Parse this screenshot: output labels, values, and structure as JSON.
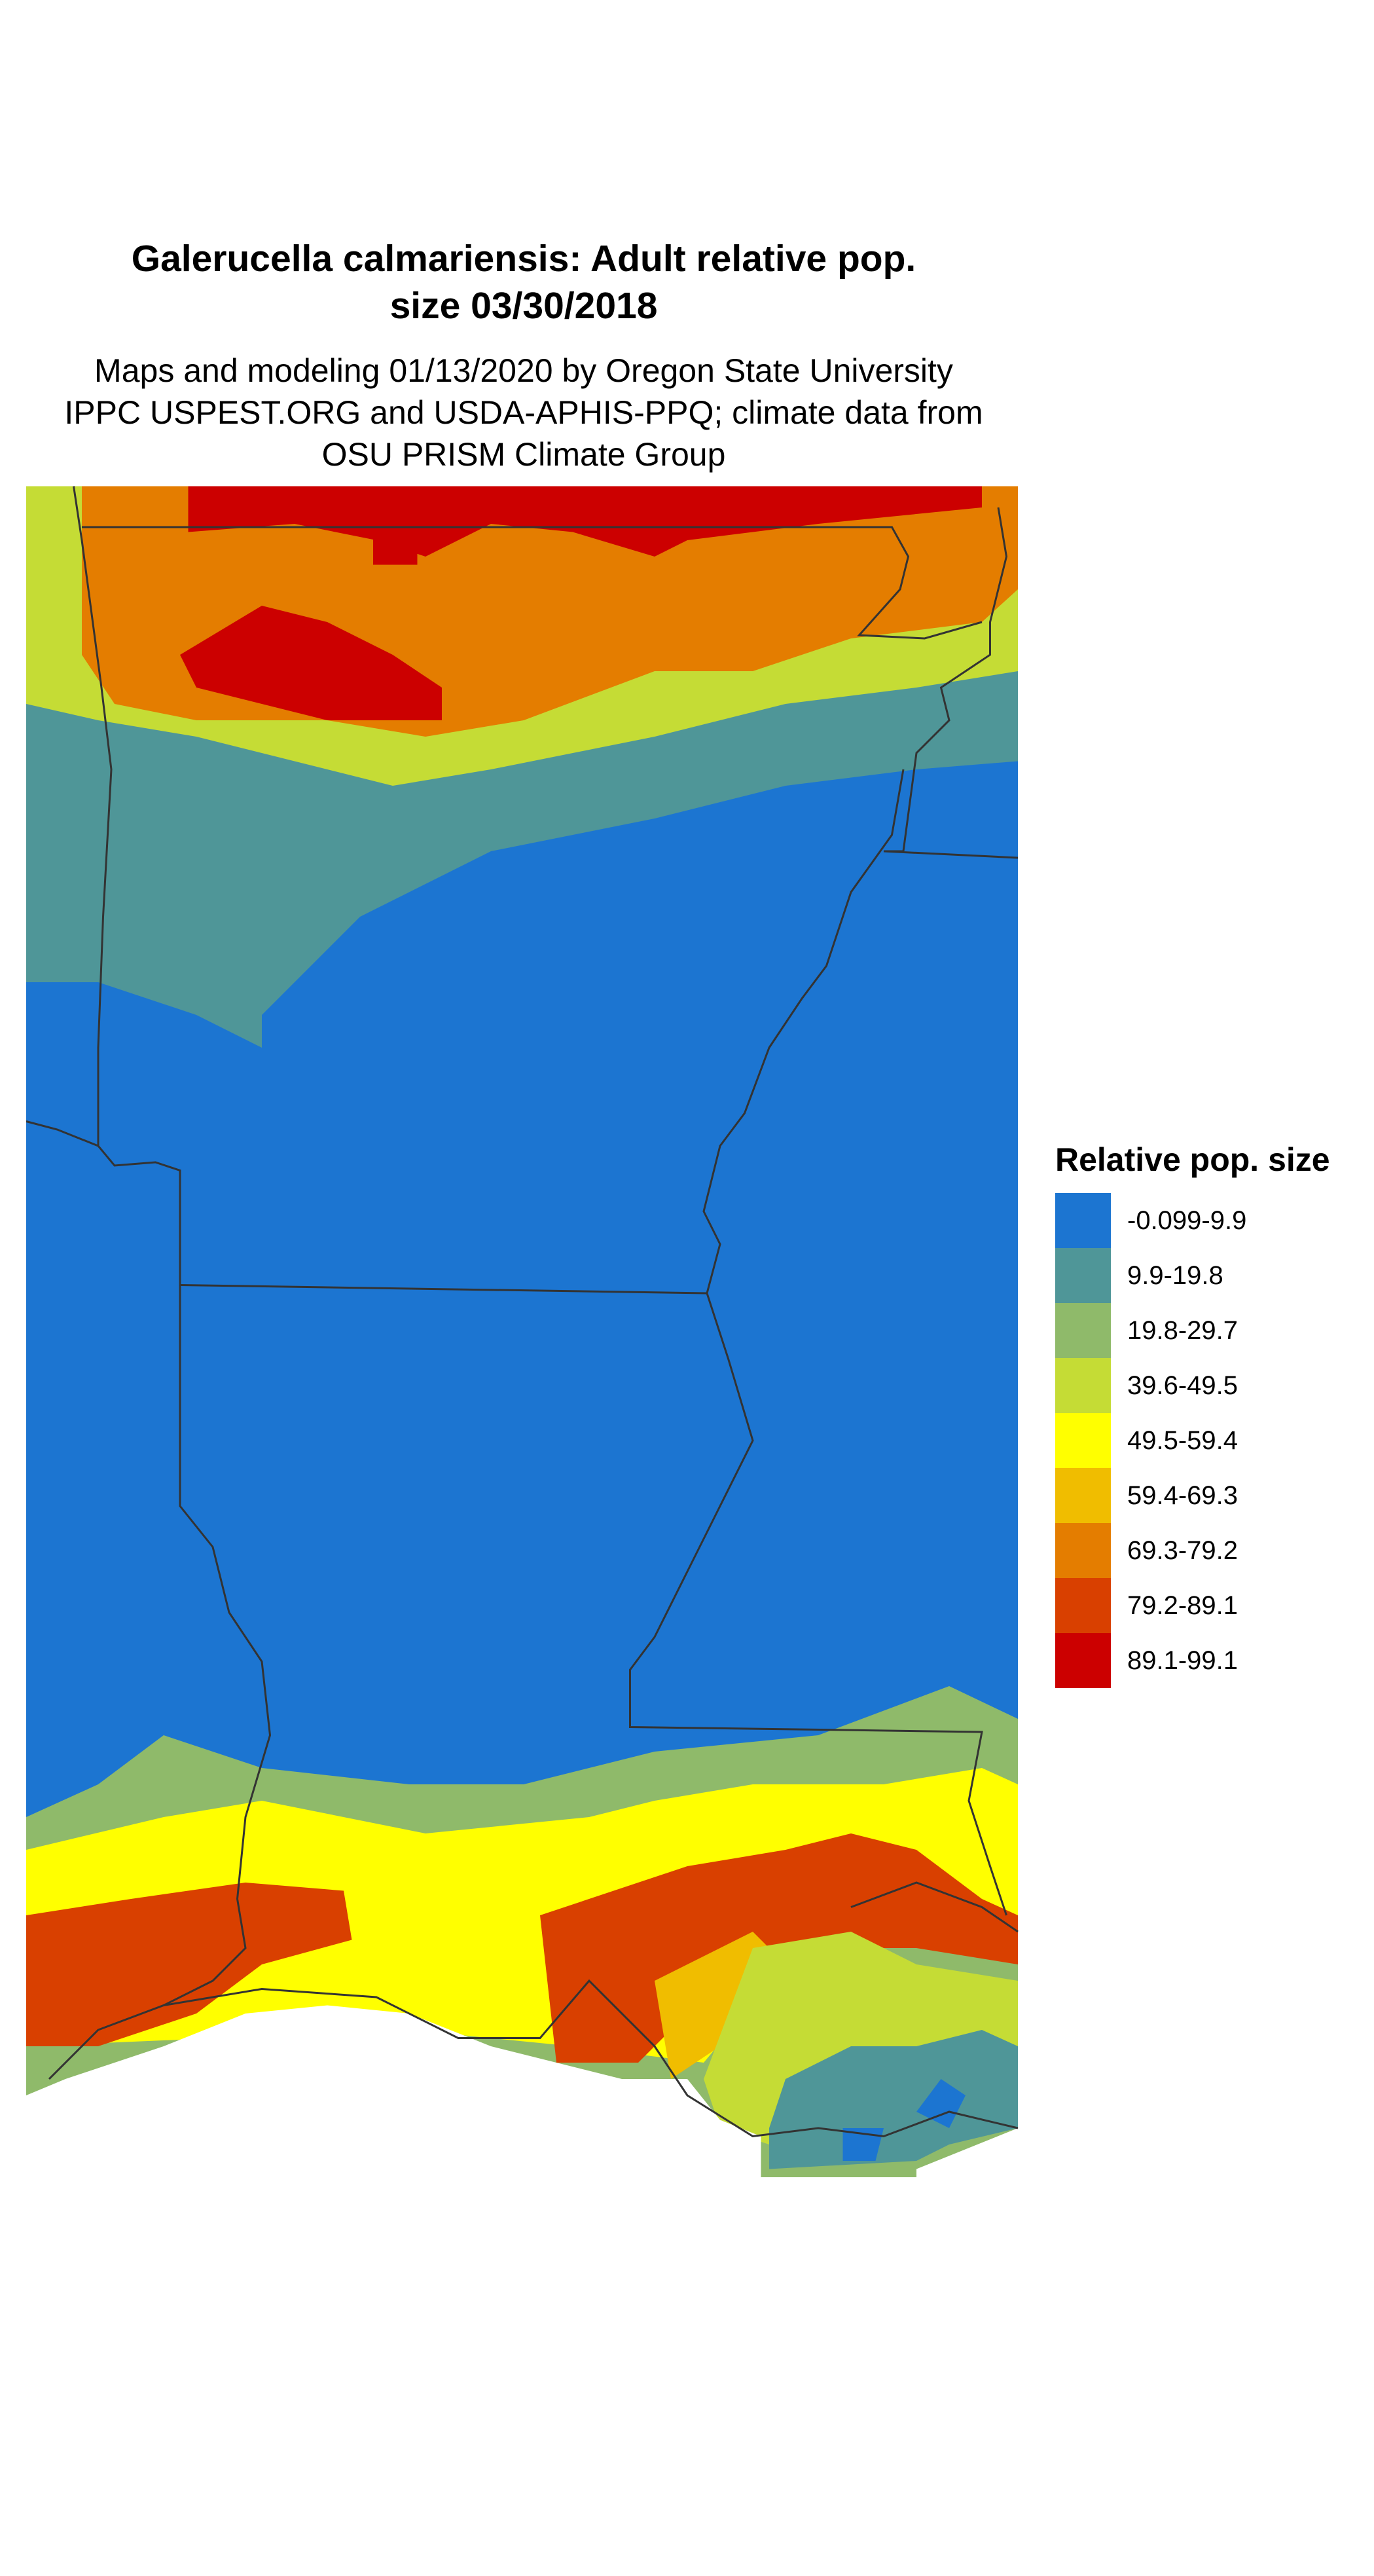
{
  "title": [
    "Galerucella calmariensis: Adult relative pop.",
    "size 03/30/2018"
  ],
  "subtitle": [
    "Maps and modeling 01/13/2020 by Oregon State University",
    "IPPC USPEST.ORG and USDA-APHIS-PPQ; climate data from",
    "OSU PRISM Climate Group"
  ],
  "legend": {
    "title": "Relative pop. size",
    "items": [
      {
        "label": "-0.099-9.9",
        "color": "#1c75d1"
      },
      {
        "label": "9.9-19.8",
        "color": "#4f9698"
      },
      {
        "label": "19.8-29.7",
        "color": "#8fba6a"
      },
      {
        "label": "39.6-49.5",
        "color": "#c5dc35"
      },
      {
        "label": "49.5-59.4",
        "color": "#ffff00"
      },
      {
        "label": "59.4-69.3",
        "color": "#f0bd00"
      },
      {
        "label": "69.3-79.2",
        "color": "#e47d00"
      },
      {
        "label": "79.2-89.1",
        "color": "#d94000"
      },
      {
        "label": "89.1-99.1",
        "color": "#cc0000"
      }
    ]
  }
}
